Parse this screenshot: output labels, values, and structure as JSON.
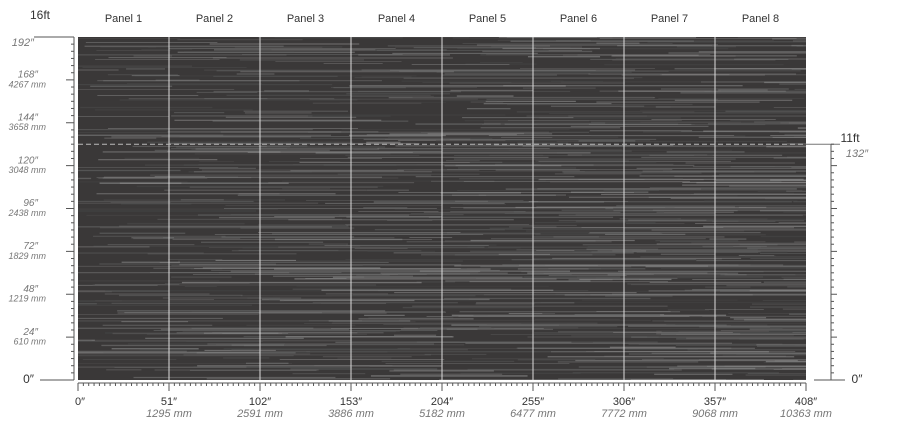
{
  "panels": [
    "Panel 1",
    "Panel 2",
    "Panel 3",
    "Panel 4",
    "Panel 5",
    "Panel 6",
    "Panel 7",
    "Panel 8"
  ],
  "left_axis": {
    "top_label": "16ft",
    "top_sub": "192″",
    "ticks": [
      {
        "inch": "168″",
        "mm": "4267 mm"
      },
      {
        "inch": "144″",
        "mm": "3658 mm"
      },
      {
        "inch": "120″",
        "mm": "3048 mm"
      },
      {
        "inch": "96″",
        "mm": "2438 mm"
      },
      {
        "inch": "72″",
        "mm": "1829 mm"
      },
      {
        "inch": "48″",
        "mm": "1219 mm"
      },
      {
        "inch": "24″",
        "mm": "610 mm"
      }
    ],
    "zero": "0″"
  },
  "bottom_axis": {
    "zero": "0″",
    "ticks": [
      {
        "inch": "51″",
        "mm": "1295 mm"
      },
      {
        "inch": "102″",
        "mm": "2591 mm"
      },
      {
        "inch": "153″",
        "mm": "3886 mm"
      },
      {
        "inch": "204″",
        "mm": "5182 mm"
      },
      {
        "inch": "255″",
        "mm": "6477 mm"
      },
      {
        "inch": "306″",
        "mm": "7772 mm"
      },
      {
        "inch": "357″",
        "mm": "9068 mm"
      },
      {
        "inch": "408″",
        "mm": "10363 mm"
      }
    ]
  },
  "right_axis": {
    "top_label": "11ft",
    "top_sub": "132″",
    "zero": "0″"
  }
}
